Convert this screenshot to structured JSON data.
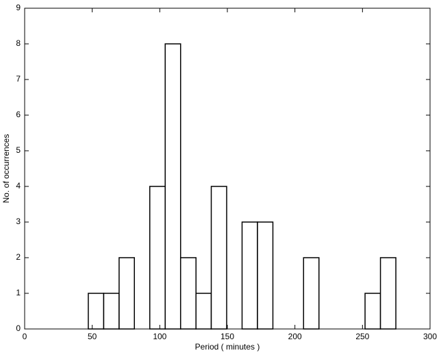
{
  "chart_data": {
    "type": "histogram",
    "xlabel": "Period ( minutes )",
    "ylabel": "No. of occurrences",
    "bins": [
      47.1,
      58.5,
      69.9,
      81.2,
      92.6,
      104.0,
      115.4,
      126.8,
      138.1,
      149.5,
      160.9,
      172.3,
      183.7,
      195.0,
      206.4,
      217.8,
      229.2,
      240.6,
      251.9,
      263.3,
      274.7
    ],
    "values": [
      1,
      1,
      2,
      0,
      4,
      8,
      2,
      1,
      4,
      0,
      3,
      3,
      0,
      0,
      2,
      0,
      0,
      0,
      1,
      2
    ],
    "color": "#ffffff",
    "xlim": [
      0,
      300
    ],
    "xticks": [
      0,
      50,
      100,
      150,
      200,
      250,
      300
    ],
    "ylim": [
      0,
      9
    ],
    "yticks": [
      0,
      1,
      2,
      3,
      4,
      5,
      6,
      7,
      8,
      9
    ],
    "grid": false
  }
}
